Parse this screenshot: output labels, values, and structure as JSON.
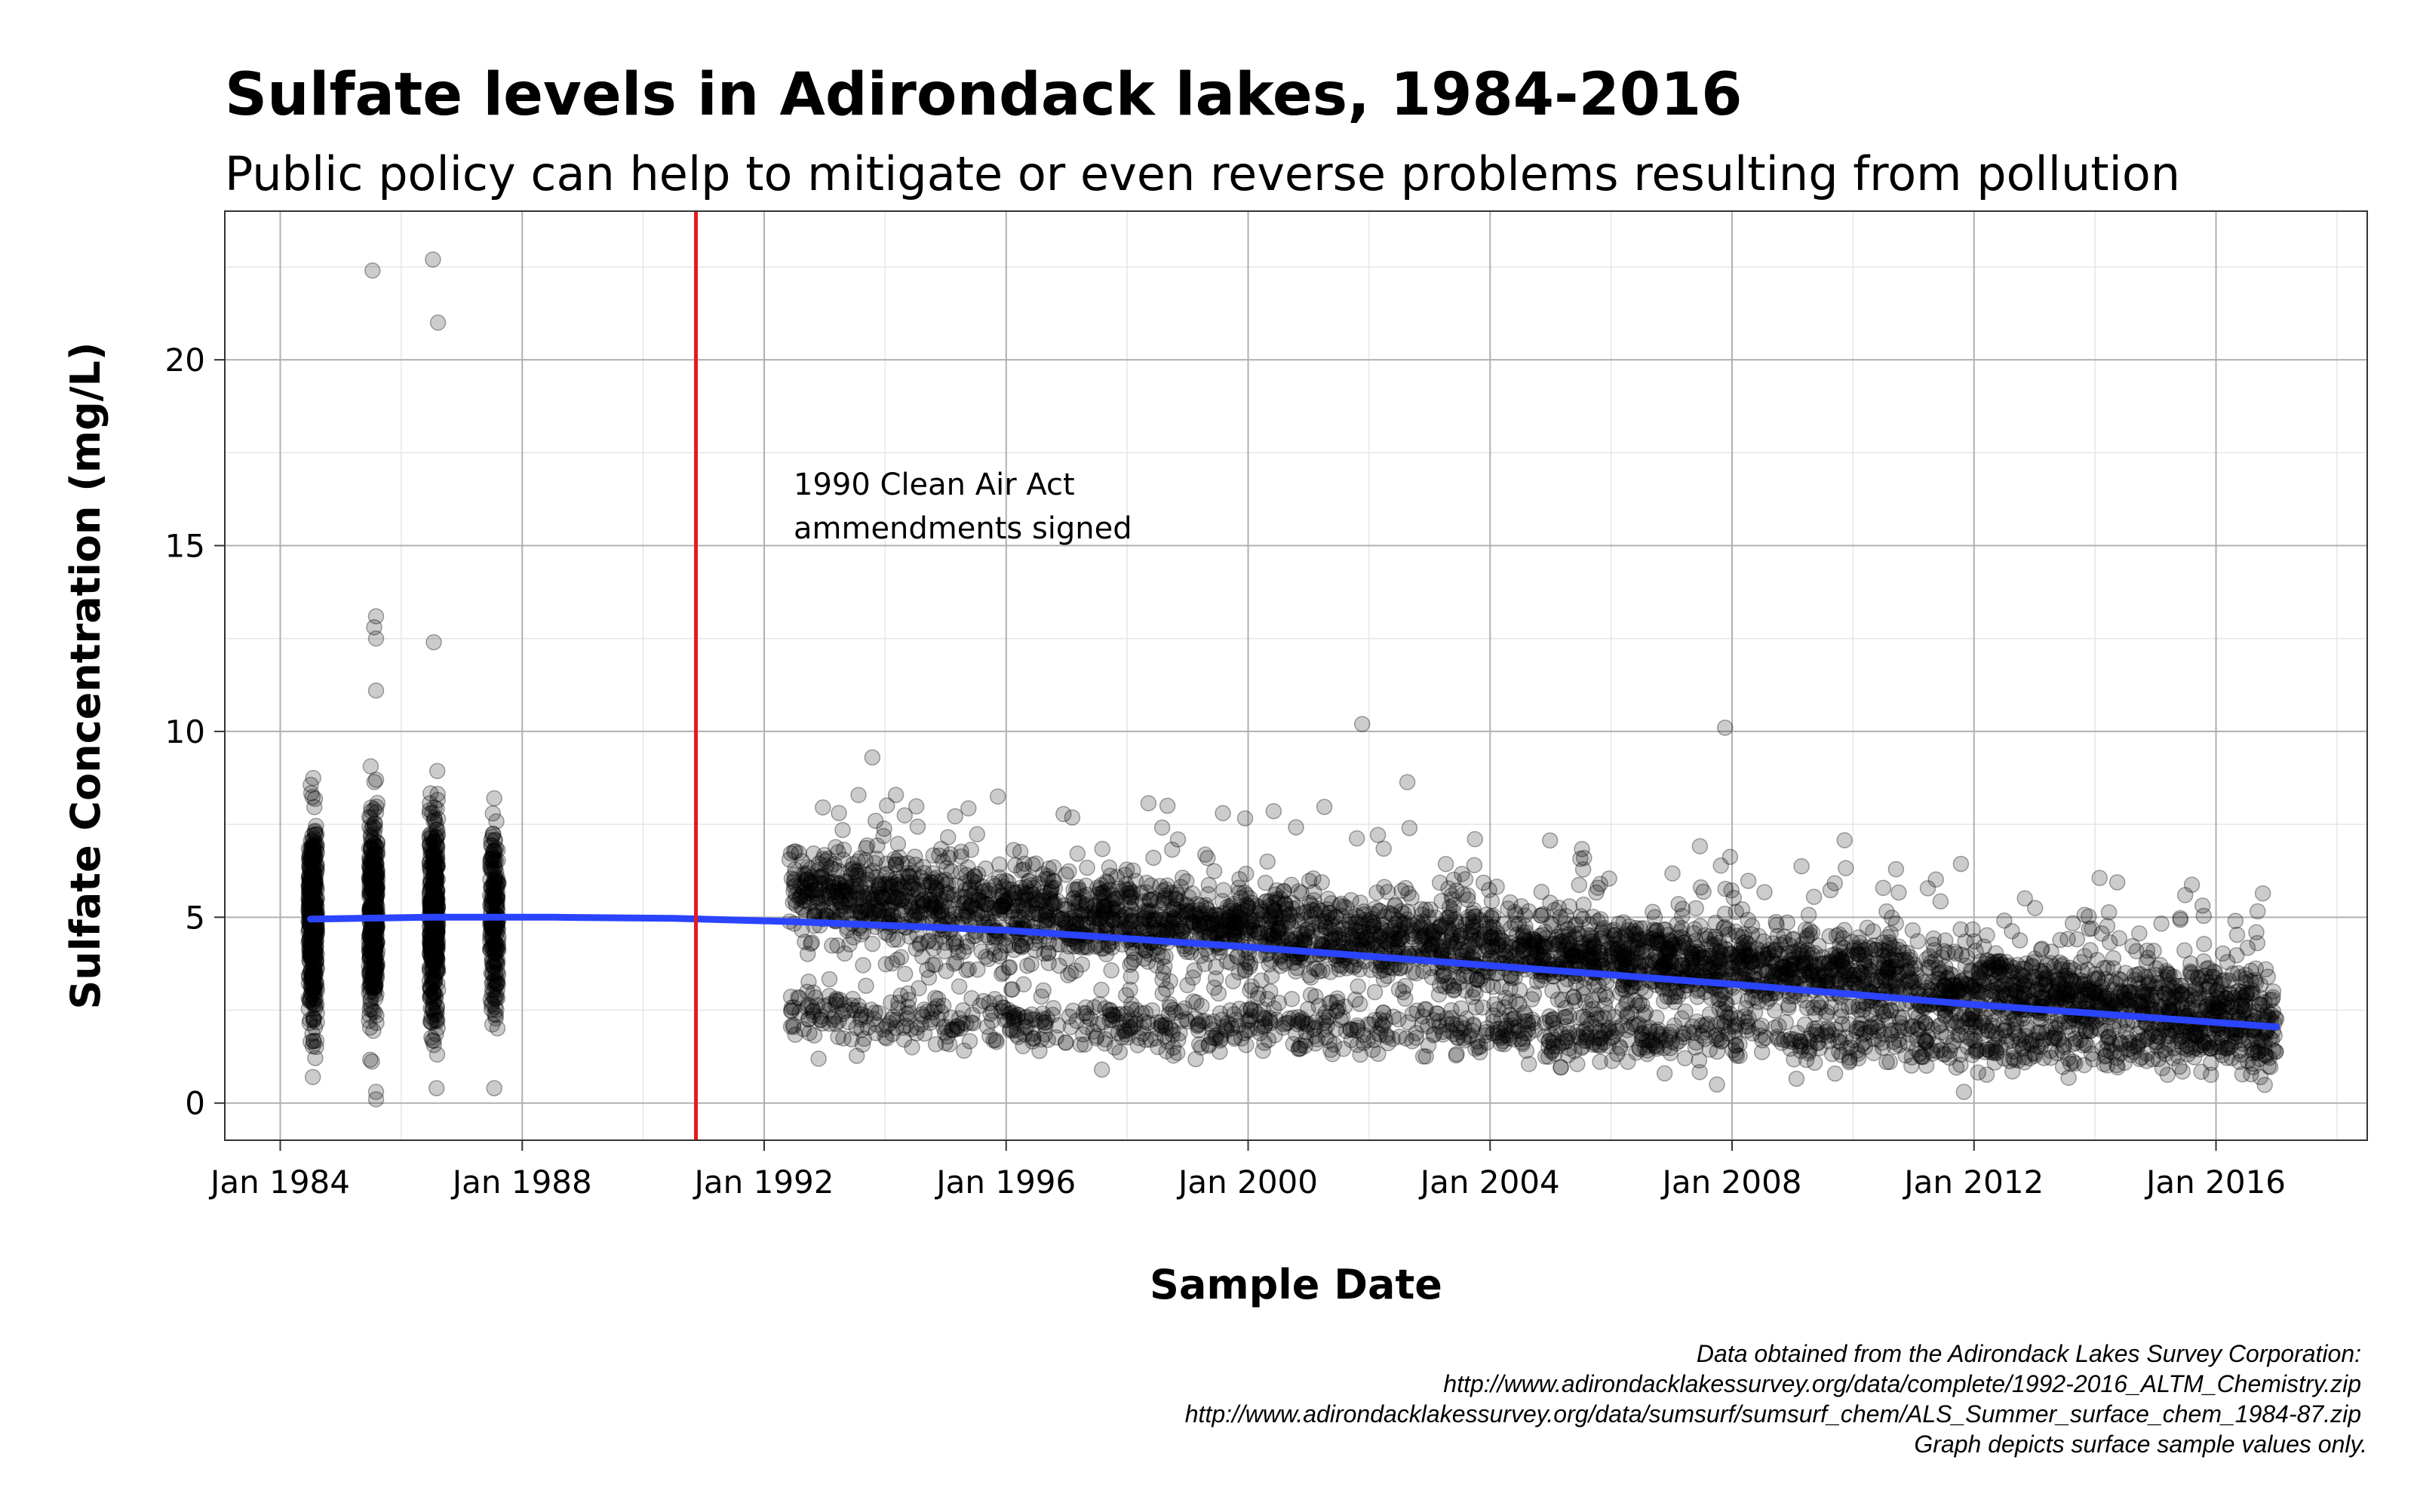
{
  "chart_data": {
    "type": "scatter",
    "title": "Sulfate levels in Adirondack lakes, 1984-2016",
    "subtitle": "Public policy can help to mitigate or even reverse problems resulting from pollution",
    "xlabel": "Sample Date",
    "ylabel": "Sulfate Concentration (mg/L)",
    "xlim": [
      "1983-02-01",
      "2018-07-01"
    ],
    "ylim": [
      -1,
      24
    ],
    "x_ticks": [
      "1984-01-01",
      "1988-01-01",
      "1992-01-01",
      "1996-01-01",
      "2000-01-01",
      "2004-01-01",
      "2008-01-01",
      "2012-01-01",
      "2016-01-01"
    ],
    "x_tick_labels": [
      "Jan 1984",
      "Jan 1988",
      "Jan 1992",
      "Jan 1996",
      "Jan 2000",
      "Jan 2004",
      "Jan 2008",
      "Jan 2012",
      "Jan 2016"
    ],
    "y_ticks": [
      0,
      5,
      10,
      15,
      20
    ],
    "y_tick_labels": [
      "0",
      "5",
      "10",
      "15",
      "20"
    ],
    "grid": true,
    "point_color": "#000000",
    "point_opacity": 0.2,
    "early_sample_dates": [
      "1984-07-15",
      "1985-07-15",
      "1986-07-15",
      "1987-07-15"
    ],
    "late_period": [
      "1992-06-01",
      "2016-12-31"
    ],
    "outliers": [
      {
        "x": "1985-07-10",
        "y": 22.4
      },
      {
        "x": "1986-07-10",
        "y": 22.7
      },
      {
        "x": "1986-08-10",
        "y": 21.0
      },
      {
        "x": "1985-08-01",
        "y": 13.1
      },
      {
        "x": "1985-07-20",
        "y": 12.8
      },
      {
        "x": "1985-08-01",
        "y": 12.5
      },
      {
        "x": "1986-07-15",
        "y": 12.4
      },
      {
        "x": "1985-08-01",
        "y": 11.1
      },
      {
        "x": "1987-07-15",
        "y": 8.2
      },
      {
        "x": "1993-10-15",
        "y": 9.3
      },
      {
        "x": "2001-11-20",
        "y": 10.2
      },
      {
        "x": "2007-11-20",
        "y": 10.1
      },
      {
        "x": "1999-08-01",
        "y": 7.8
      },
      {
        "x": "1998-09-01",
        "y": 8.0
      },
      {
        "x": "2002-09-01",
        "y": 7.4
      },
      {
        "x": "2003-10-01",
        "y": 7.1
      },
      {
        "x": "1985-08-01",
        "y": 0.1
      },
      {
        "x": "1985-08-01",
        "y": 0.3
      },
      {
        "x": "1984-07-15",
        "y": 0.7
      },
      {
        "x": "1986-08-01",
        "y": 0.4
      },
      {
        "x": "1987-07-15",
        "y": 0.4
      },
      {
        "x": "1997-08-01",
        "y": 0.9
      },
      {
        "x": "2007-10-01",
        "y": 0.5
      },
      {
        "x": "2011-11-01",
        "y": 0.3
      }
    ],
    "trend_series": {
      "color": "#2b44ff",
      "x": [
        "1984-07-01",
        "1986-07-01",
        "1988-07-01",
        "1990-07-01",
        "1992-07-01",
        "1996-01-01",
        "2000-01-01",
        "2004-01-01",
        "2008-01-01",
        "2012-01-01",
        "2016-12-31"
      ],
      "y": [
        4.95,
        5.0,
        5.0,
        4.97,
        4.88,
        4.65,
        4.2,
        3.7,
        3.2,
        2.65,
        2.05
      ]
    },
    "vline": {
      "x": "1990-11-15",
      "color": "#e8191f",
      "label_line1": "1990 Clean Air Act",
      "label_line2": "ammendments signed"
    },
    "caption": [
      "Data obtained from the Adirondack Lakes Survey Corporation:",
      "http://www.adirondacklakessurvey.org/data/complete/1992-2016_ALTM_Chemistry.zip",
      "http://www.adirondacklakessurvey.org/data/sumsurf/sumsurf_chem/ALS_Summer_surface_chem_1984-87.zip",
      "Graph depicts surface sample values only."
    ]
  }
}
